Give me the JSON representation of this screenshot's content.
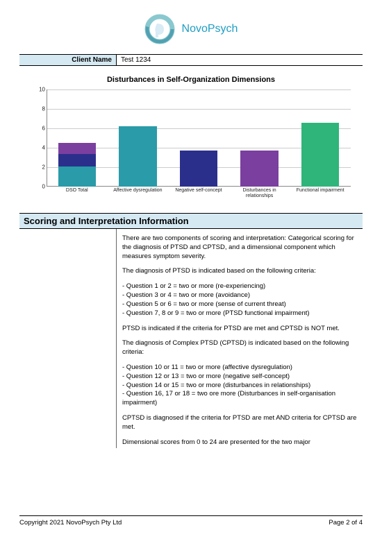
{
  "brand": "NovoPsych",
  "client": {
    "label": "Client Name",
    "value": "Test 1234"
  },
  "chart": {
    "type": "bar",
    "title": "Disturbances in Self-Organization Dimensions",
    "ymax": 10,
    "ytick_step": 2,
    "yticks": [
      "0",
      "2",
      "4",
      "6",
      "8",
      "10"
    ],
    "axis_color": "#888888",
    "grid_color": "#cccccc",
    "label_fontsize": 7,
    "colors": {
      "teal": "#2a9ba8",
      "navy": "#2b2f8c",
      "purple": "#7b3fa0",
      "green": "#2fb57a"
    },
    "bars": [
      {
        "label": "DSO Total",
        "segments": [
          {
            "value": 2.1,
            "colorKey": "teal"
          },
          {
            "value": 1.25,
            "colorKey": "navy"
          },
          {
            "value": 1.15,
            "colorKey": "purple"
          }
        ]
      },
      {
        "label": "Affective dysregulation",
        "segments": [
          {
            "value": 6.2,
            "colorKey": "teal"
          }
        ]
      },
      {
        "label": "Negative self-concept",
        "segments": [
          {
            "value": 3.7,
            "colorKey": "navy"
          }
        ]
      },
      {
        "label": "Disturbances in relationships",
        "segments": [
          {
            "value": 3.7,
            "colorKey": "purple"
          }
        ]
      },
      {
        "label": "Functional impairment",
        "segments": [
          {
            "value": 6.6,
            "colorKey": "green"
          }
        ]
      }
    ]
  },
  "scoring": {
    "heading": "Scoring and Interpretation Information",
    "paragraphs": [
      "There are two components of scoring and interpretation: Categorical scoring for the diagnosis of PTSD and CPTSD, and a dimensional component which measures symptom severity.",
      "The diagnosis of PTSD is indicated based on the following criteria:",
      "- Question 1 or 2 = two or more (re-experiencing)\n- Question 3 or 4 = two or more (avoidance)\n- Question 5 or 6 = two or more (sense of current threat)\n- Question 7, 8 or 9 = two or more (PTSD functional impairment)",
      "PTSD is indicated if the criteria for PTSD are met and CPTSD is NOT met.",
      "The diagnosis of Complex PTSD (CPTSD) is indicated based on the following criteria:",
      "- Question 10 or 11 = two or more (affective dysregulation)\n- Question 12 or 13 = two or more (negative self-concept)\n- Question 14 or 15 = two or more (disturbances in relationships)\n- Question 16, 17 or 18 = two ore more (Disturbances in self-organisation impairment)",
      "CPTSD is diagnosed if the criteria for PTSD are met AND criteria for CPTSD are met.",
      "Dimensional scores from 0 to 24 are presented for the two major"
    ]
  },
  "footer": {
    "copyright": "Copyright 2021 NovoPsych Pty Ltd",
    "page": "Page 2 of 4"
  }
}
